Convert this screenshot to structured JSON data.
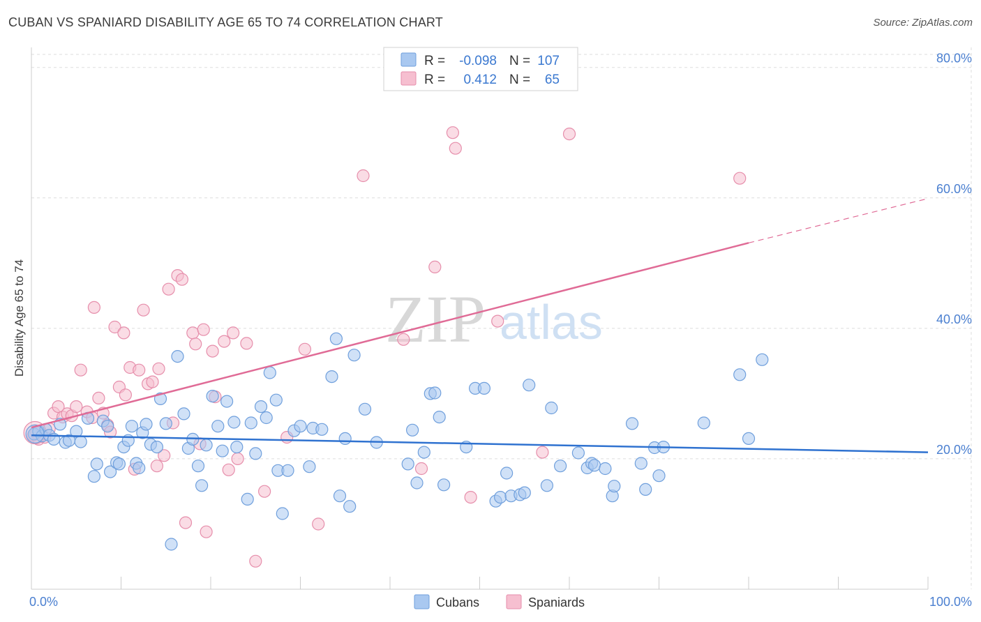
{
  "title": "CUBAN VS SPANIARD DISABILITY AGE 65 TO 74 CORRELATION CHART",
  "source": "Source: ZipAtlas.com",
  "watermark": {
    "zip": "ZIP",
    "atlas": "atlas"
  },
  "colors": {
    "cubans_fill": "#a9c8f0",
    "cubans_stroke": "#6f9fdc",
    "cubans_line": "#2f72d0",
    "spaniards_fill": "#f6bfd0",
    "spaniards_stroke": "#e68eab",
    "spaniards_line": "#e06b96",
    "grid": "#dddddd",
    "tick_text": "#4a7fd0"
  },
  "legend_box": {
    "rows": [
      {
        "r_label": "R =",
        "r_value": "-0.098",
        "n_label": "N =",
        "n_value": "107"
      },
      {
        "r_label": "R =",
        "r_value": "0.412",
        "n_label": "N =",
        "n_value": "65"
      }
    ]
  },
  "bottom_legend": [
    "Cubans",
    "Spaniards"
  ],
  "chart_data": {
    "type": "scatter",
    "title": "CUBAN VS SPANIARD DISABILITY AGE 65 TO 74 CORRELATION CHART",
    "xlabel": "",
    "ylabel": "Disability Age 65 to 74",
    "xlim": [
      0,
      100
    ],
    "ylim": [
      0,
      82
    ],
    "x_tick_labels": [
      "0.0%",
      "100.0%"
    ],
    "y_ticks": [
      20,
      40,
      60,
      80
    ],
    "y_tick_labels": [
      "20.0%",
      "40.0%",
      "60.0%",
      "80.0%"
    ],
    "grid": true,
    "series": [
      {
        "name": "Cubans",
        "r": -0.098,
        "n": 107,
        "trend": {
          "x0": 0,
          "y0": 23.6,
          "x1": 100,
          "y1": 21.0
        },
        "points": [
          [
            0.3,
            23.8
          ],
          [
            0.8,
            24.2
          ],
          [
            1.2,
            23.5
          ],
          [
            1.6,
            24.5
          ],
          [
            2.0,
            23.6
          ],
          [
            2.5,
            23.0
          ],
          [
            3.2,
            25.3
          ],
          [
            3.8,
            22.5
          ],
          [
            4.2,
            22.8
          ],
          [
            5.0,
            24.2
          ],
          [
            5.5,
            22.6
          ],
          [
            6.3,
            26.2
          ],
          [
            7.0,
            17.3
          ],
          [
            7.3,
            19.2
          ],
          [
            8.0,
            25.8
          ],
          [
            8.5,
            25.0
          ],
          [
            8.8,
            18.0
          ],
          [
            9.5,
            19.4
          ],
          [
            9.8,
            19.2
          ],
          [
            10.3,
            21.8
          ],
          [
            10.8,
            22.8
          ],
          [
            11.2,
            25.0
          ],
          [
            11.7,
            19.3
          ],
          [
            12.0,
            18.6
          ],
          [
            12.4,
            24.0
          ],
          [
            12.8,
            25.3
          ],
          [
            13.3,
            22.2
          ],
          [
            14.0,
            21.8
          ],
          [
            14.4,
            29.2
          ],
          [
            15.0,
            25.4
          ],
          [
            15.6,
            6.9
          ],
          [
            16.3,
            35.7
          ],
          [
            17.0,
            26.9
          ],
          [
            17.5,
            21.6
          ],
          [
            18.0,
            23.0
          ],
          [
            18.6,
            18.9
          ],
          [
            19.0,
            15.9
          ],
          [
            19.5,
            22.1
          ],
          [
            20.2,
            29.6
          ],
          [
            20.8,
            25.0
          ],
          [
            21.3,
            21.2
          ],
          [
            21.8,
            28.8
          ],
          [
            22.6,
            25.6
          ],
          [
            22.9,
            21.8
          ],
          [
            24.1,
            13.8
          ],
          [
            24.5,
            25.5
          ],
          [
            25.0,
            20.8
          ],
          [
            25.6,
            28.0
          ],
          [
            26.2,
            26.3
          ],
          [
            26.6,
            33.2
          ],
          [
            27.3,
            29.0
          ],
          [
            27.5,
            18.2
          ],
          [
            28.0,
            11.6
          ],
          [
            28.6,
            18.2
          ],
          [
            29.3,
            24.3
          ],
          [
            30.0,
            25.0
          ],
          [
            31.0,
            18.8
          ],
          [
            31.4,
            24.7
          ],
          [
            32.4,
            24.5
          ],
          [
            33.5,
            32.6
          ],
          [
            34.0,
            38.4
          ],
          [
            34.4,
            14.3
          ],
          [
            35.0,
            23.1
          ],
          [
            35.5,
            12.7
          ],
          [
            36.0,
            35.9
          ],
          [
            37.2,
            27.6
          ],
          [
            38.5,
            22.5
          ],
          [
            42.0,
            19.2
          ],
          [
            42.5,
            24.4
          ],
          [
            43.0,
            16.3
          ],
          [
            43.8,
            21.0
          ],
          [
            44.5,
            30.0
          ],
          [
            45.0,
            30.1
          ],
          [
            45.5,
            26.4
          ],
          [
            46.0,
            16.0
          ],
          [
            48.5,
            21.8
          ],
          [
            49.5,
            30.8
          ],
          [
            50.5,
            30.8
          ],
          [
            51.8,
            13.5
          ],
          [
            52.3,
            14.1
          ],
          [
            53.0,
            17.8
          ],
          [
            53.5,
            14.3
          ],
          [
            54.5,
            14.5
          ],
          [
            55.0,
            14.8
          ],
          [
            55.5,
            31.3
          ],
          [
            57.5,
            15.9
          ],
          [
            58.0,
            27.8
          ],
          [
            59.0,
            18.9
          ],
          [
            61.0,
            20.9
          ],
          [
            62.0,
            18.6
          ],
          [
            62.5,
            19.3
          ],
          [
            62.8,
            19.0
          ],
          [
            64.0,
            18.5
          ],
          [
            64.8,
            14.3
          ],
          [
            65.0,
            15.8
          ],
          [
            67.0,
            25.4
          ],
          [
            68.0,
            19.3
          ],
          [
            68.5,
            15.3
          ],
          [
            69.5,
            21.7
          ],
          [
            70.0,
            17.4
          ],
          [
            70.5,
            21.8
          ],
          [
            75.0,
            25.5
          ],
          [
            79.0,
            32.9
          ],
          [
            80.0,
            23.1
          ],
          [
            81.5,
            35.2
          ]
        ]
      },
      {
        "name": "Spaniards",
        "r": 0.412,
        "n": 65,
        "trend": {
          "x0": 0,
          "y0": 24.8,
          "x1": 80,
          "y1": 53.1
        },
        "trend_dashed_to": {
          "x": 100,
          "y": 59.9
        },
        "points": [
          [
            0.2,
            23.6
          ],
          [
            0.8,
            23.0
          ],
          [
            1.5,
            23.3
          ],
          [
            2.0,
            24.6
          ],
          [
            2.5,
            27.0
          ],
          [
            3.0,
            28.0
          ],
          [
            3.5,
            26.4
          ],
          [
            4.0,
            26.9
          ],
          [
            4.5,
            26.6
          ],
          [
            5.0,
            28.0
          ],
          [
            5.5,
            33.6
          ],
          [
            6.2,
            27.2
          ],
          [
            6.8,
            26.3
          ],
          [
            7.0,
            43.2
          ],
          [
            7.5,
            29.3
          ],
          [
            8.0,
            27.0
          ],
          [
            8.5,
            25.2
          ],
          [
            8.8,
            24.1
          ],
          [
            9.3,
            40.2
          ],
          [
            9.8,
            31.0
          ],
          [
            10.3,
            39.3
          ],
          [
            10.5,
            29.8
          ],
          [
            11.0,
            34.0
          ],
          [
            11.5,
            18.4
          ],
          [
            12.0,
            33.6
          ],
          [
            12.5,
            42.8
          ],
          [
            13.0,
            31.5
          ],
          [
            13.5,
            31.8
          ],
          [
            14.0,
            18.9
          ],
          [
            14.2,
            33.8
          ],
          [
            14.8,
            20.5
          ],
          [
            15.3,
            46.0
          ],
          [
            15.8,
            25.5
          ],
          [
            16.3,
            48.1
          ],
          [
            16.8,
            47.5
          ],
          [
            17.2,
            10.2
          ],
          [
            18.0,
            39.3
          ],
          [
            18.3,
            37.6
          ],
          [
            18.8,
            22.3
          ],
          [
            19.2,
            39.8
          ],
          [
            19.5,
            8.8
          ],
          [
            20.2,
            36.5
          ],
          [
            20.5,
            29.5
          ],
          [
            21.5,
            38.0
          ],
          [
            22.0,
            18.3
          ],
          [
            22.5,
            39.3
          ],
          [
            23.0,
            20.0
          ],
          [
            24.0,
            37.7
          ],
          [
            25.0,
            4.3
          ],
          [
            26.0,
            15.0
          ],
          [
            28.5,
            23.3
          ],
          [
            30.5,
            36.8
          ],
          [
            32.0,
            10.0
          ],
          [
            37.0,
            63.4
          ],
          [
            41.5,
            38.3
          ],
          [
            43.5,
            18.5
          ],
          [
            45.0,
            49.4
          ],
          [
            47.0,
            70.0
          ],
          [
            47.3,
            67.6
          ],
          [
            49.0,
            14.1
          ],
          [
            52.0,
            41.1
          ],
          [
            57.0,
            21.0
          ],
          [
            60.0,
            69.8
          ],
          [
            79.0,
            63.0
          ],
          [
            0.5,
            24.0
          ]
        ]
      }
    ]
  }
}
